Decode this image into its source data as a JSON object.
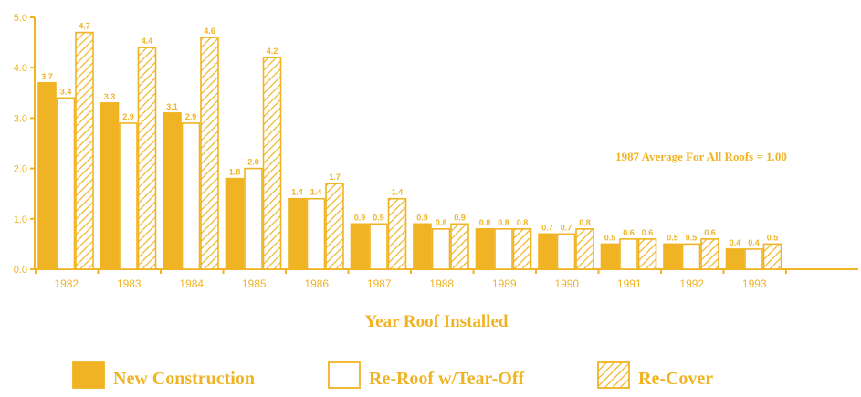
{
  "chart_data": {
    "type": "bar",
    "categories": [
      "1982",
      "1983",
      "1984",
      "1985",
      "1986",
      "1987",
      "1988",
      "1989",
      "1990",
      "1991",
      "1992",
      "1993"
    ],
    "series": [
      {
        "name": "New Construction",
        "values": [
          3.7,
          3.3,
          3.1,
          1.8,
          1.4,
          0.9,
          0.9,
          0.8,
          0.7,
          0.5,
          0.5,
          0.4
        ]
      },
      {
        "name": "Re-Roof w/Tear-Off",
        "values": [
          3.4,
          2.9,
          2.9,
          2.0,
          1.4,
          0.9,
          0.8,
          0.8,
          0.7,
          0.6,
          0.5,
          0.4
        ]
      },
      {
        "name": "Re-Cover",
        "values": [
          4.7,
          4.4,
          4.6,
          4.2,
          1.7,
          1.4,
          0.9,
          0.8,
          0.8,
          0.6,
          0.6,
          0.5
        ]
      }
    ],
    "ylim": [
      0,
      5
    ],
    "yticks": [
      "0.0",
      "1.0",
      "2.0",
      "3.0",
      "4.0",
      "5.0"
    ],
    "xlabel": "Year Roof Installed",
    "ylabel": "",
    "annotation": "1987 Average For All Roofs = 1.00",
    "legend_position": "bottom",
    "grid": false,
    "colors": {
      "accent": "#f0b323",
      "fill": "#f0b323",
      "background": "#ffffff"
    }
  }
}
